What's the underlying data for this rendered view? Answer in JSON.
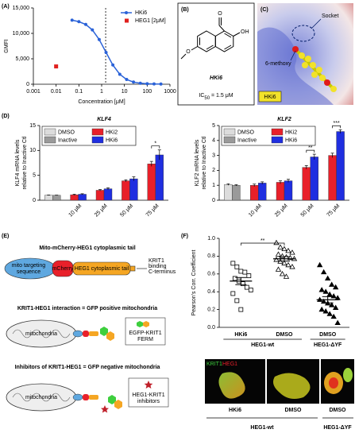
{
  "chart_data": [
    {
      "type": "line",
      "panel": "(A)",
      "x_label": "Concentration [μM]",
      "y_label": "GMFI",
      "xscale": "log",
      "xlim": [
        0.001,
        1000
      ],
      "xticks": [
        0.001,
        0.01,
        0.1,
        1,
        10,
        100,
        1000
      ],
      "ylim": [
        0,
        15000
      ],
      "yticks": [
        0,
        {
          "value": 5000,
          "label": "5,000"
        },
        {
          "value": 10000,
          "label": "10,000"
        },
        {
          "value": 15000,
          "label": "15,000"
        }
      ],
      "vline": 1.5,
      "legend": "upper right",
      "series": [
        {
          "name": "HKi6",
          "color": "#2a62d8",
          "marker": "circle",
          "line": true,
          "x": [
            0.05,
            0.1,
            0.2,
            0.39,
            0.78,
            1.56,
            3.1,
            6.25,
            12.5,
            25,
            50,
            100,
            200,
            400
          ],
          "values": [
            12600,
            12300,
            11750,
            10680,
            8790,
            6250,
            3780,
            1960,
            930,
            420,
            190,
            100,
            50,
            30
          ]
        },
        {
          "name": "HEG1 [2μM]",
          "color": "#e0201e",
          "marker": "square",
          "line": false,
          "x": [
            0.01
          ],
          "values": [
            3500
          ]
        }
      ]
    },
    {
      "type": "bar",
      "panel": "(D)",
      "title": "KLF4",
      "y_label": [
        "KLF4 mRNA levels",
        "relative to Inactive Ctl"
      ],
      "categories": [
        null,
        "10 μM",
        "25 μM",
        "50 μM",
        "75 μM"
      ],
      "ylim": [
        0,
        15
      ],
      "yticks": [
        0,
        5,
        10,
        15
      ],
      "legend": "upper left",
      "annotations": [
        null,
        null,
        null,
        null,
        "*"
      ],
      "series": [
        {
          "name": "DMSO",
          "color": "#dcdcdc",
          "values": [
            1.0,
            null,
            null,
            null,
            null
          ],
          "errors": [
            0.05,
            null,
            null,
            null,
            null
          ]
        },
        {
          "name": "Inactive",
          "color": "#9a9a9a",
          "values": [
            1.0,
            null,
            null,
            null,
            null
          ],
          "errors": [
            0.03,
            null,
            null,
            null,
            null
          ]
        },
        {
          "name": "HKi2",
          "color": "#e8202a",
          "values": [
            null,
            1.1,
            2.0,
            3.9,
            7.3
          ],
          "errors": [
            null,
            0.1,
            0.15,
            0.2,
            0.5
          ]
        },
        {
          "name": "HKi6",
          "color": "#1f2ee0",
          "values": [
            null,
            1.2,
            2.3,
            4.3,
            9.1
          ],
          "errors": [
            null,
            0.1,
            0.2,
            0.4,
            1.0
          ]
        }
      ]
    },
    {
      "type": "bar",
      "title": "KLF2",
      "y_label": [
        "KLF2 mRNA levels",
        "relative to Inactive Ctl"
      ],
      "categories": [
        null,
        "10 μM",
        "25 μM",
        "50 μM",
        "75 μM"
      ],
      "ylim": [
        0,
        5
      ],
      "yticks": [
        0,
        1,
        2,
        3,
        4,
        5
      ],
      "legend": "upper left",
      "annotations": [
        null,
        null,
        null,
        "**",
        "***"
      ],
      "series": [
        {
          "name": "DMSO",
          "color": "#dcdcdc",
          "values": [
            1.05,
            null,
            null,
            null,
            null
          ],
          "errors": [
            0.05,
            null,
            null,
            null,
            null
          ]
        },
        {
          "name": "Inactive",
          "color": "#9a9a9a",
          "values": [
            1.0,
            null,
            null,
            null,
            null
          ],
          "errors": [
            0.04,
            null,
            null,
            null,
            null
          ]
        },
        {
          "name": "HKi2",
          "color": "#e8202a",
          "values": [
            null,
            1.0,
            1.2,
            2.2,
            3.0
          ],
          "errors": [
            null,
            0.08,
            0.1,
            0.12,
            0.15
          ]
        },
        {
          "name": "HKi6",
          "color": "#1f2ee0",
          "values": [
            null,
            1.15,
            1.3,
            2.9,
            4.6
          ],
          "errors": [
            null,
            0.08,
            0.1,
            0.18,
            0.12
          ]
        }
      ]
    },
    {
      "type": "strip",
      "panel": "(F)",
      "y_label": "Pearson's Corr. Coefficient",
      "categories": [
        "HKi6",
        "DMSO",
        "DMSO"
      ],
      "group_labels": [
        "HEG1-wt",
        "HEG1-ΔYF"
      ],
      "ylim": [
        0,
        1.0
      ],
      "yticks": [
        {
          "value": 0,
          "label": "0.0"
        },
        0.2,
        0.4,
        0.6,
        0.8,
        {
          "value": 1.0,
          "label": "1.0"
        }
      ],
      "markers": [
        "square-open",
        "triangle-open",
        "triangle-filled"
      ],
      "values": [
        [
          0.72,
          0.68,
          0.63,
          0.62,
          0.58,
          0.55,
          0.52,
          0.49,
          0.45,
          0.42,
          0.38,
          0.3,
          0.2
        ],
        [
          0.95,
          0.9,
          0.88,
          0.86,
          0.84,
          0.82,
          0.8,
          0.79,
          0.78,
          0.77,
          0.76,
          0.74,
          0.72,
          0.7,
          0.68,
          0.65,
          0.6,
          0.57
        ],
        [
          0.7,
          0.62,
          0.55,
          0.48,
          0.45,
          0.42,
          0.4,
          0.37,
          0.35,
          0.33,
          0.31,
          0.29,
          0.27,
          0.25,
          0.22,
          0.2,
          0.18,
          0.15,
          0.12,
          0.05
        ]
      ],
      "means": [
        0.52,
        0.77,
        0.31
      ],
      "sems": [
        0.04,
        0.025,
        0.035
      ],
      "brackets": [
        {
          "from": 0,
          "to": 1,
          "label": "**"
        }
      ]
    }
  ],
  "panel_b": {
    "label": "(B)",
    "atoms": [
      "O",
      "OH",
      "O"
    ],
    "name": "HKi6",
    "ic50": [
      "IC",
      "50",
      " = 1.5 μM"
    ]
  },
  "panel_c": {
    "label": "(C)",
    "socket": "Socket",
    "methoxy": "6-methoxy",
    "compound": "HKi6"
  },
  "panel_e": {
    "label": "(E)",
    "construct_title": "Mito-mCherry-HEG1 cytoplasmic tail",
    "mito_seq": [
      "mito targeting",
      "sequence"
    ],
    "mcherry": "mCherry",
    "heg1_tail": "HEG1 cytoplasmic tail",
    "krit1_binding": [
      "KRIT1",
      "binding",
      "C-terminus"
    ],
    "positive_title": "KRIT1-HEG1 interaction = GFP positive mitochondria",
    "mito_positive": "mitochondria",
    "egfp": [
      "EGFP-KRIT1",
      "FERM"
    ],
    "negative_title": "Inhibitors of KRIT1-HEG1 = GFP negative mitochondria",
    "mito_negative": "mitochondria",
    "inhibitors": [
      "HEG1-KRIT1",
      "inhibitors"
    ]
  },
  "panel_f_images": {
    "channels": [
      "KRIT1",
      "HEG1"
    ],
    "conditions": [
      "HKi6",
      "DMSO",
      "DMSO"
    ],
    "groups": [
      "HEG1-wt",
      "HEG1-ΔYF"
    ]
  }
}
